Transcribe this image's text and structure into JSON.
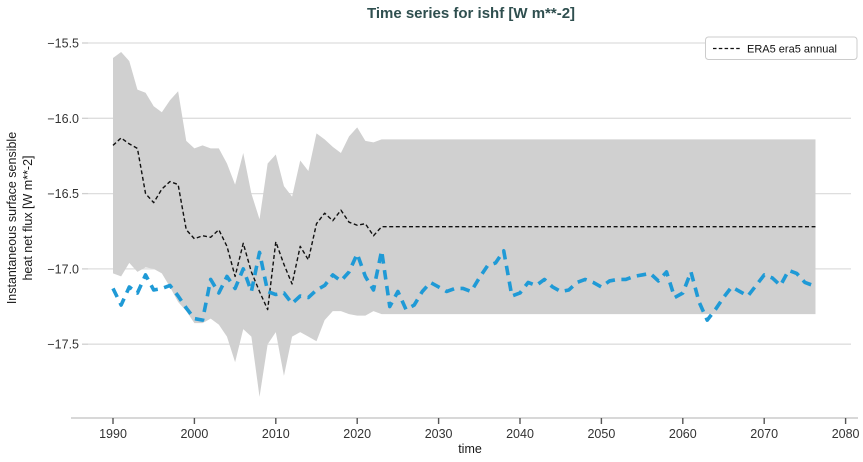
{
  "chart": {
    "title": "Time series for ishf [W m**-2]",
    "title_color": "#2f4f4f",
    "xlabel": "time",
    "ylabel_line1": "Instantaneous surface sensible",
    "ylabel_line2": "heat net flux [W m**-2]",
    "legend": {
      "label": "ERA5 era5 annual"
    }
  },
  "chart_data": {
    "type": "line",
    "title": "Time series for ishf [W m**-2]",
    "xlabel": "time",
    "ylabel": "Instantaneous surface sensible heat net flux [W m**-2]",
    "xlim": [
      1987,
      2081
    ],
    "ylim": [
      -17.99,
      -15.46
    ],
    "x_ticks": [
      1990,
      2000,
      2010,
      2020,
      2030,
      2040,
      2050,
      2060,
      2070,
      2080
    ],
    "y_ticks": [
      -15.5,
      -16.0,
      -16.5,
      -17.0,
      -17.5
    ],
    "grid": "horizontal",
    "legend_position": "upper right",
    "legend_entries": [
      "ERA5 era5 annual"
    ],
    "colors": {
      "era5_line": "#111111",
      "blue_line": "#1f9ad6",
      "band": "#d0d0d0",
      "gridline": "#dedede",
      "axis": "#d8d8d8"
    },
    "series": [
      {
        "name": "ERA5 era5 annual",
        "line_style": "thin-dashed",
        "color": "#111111",
        "in_legend": true,
        "x": [
          1990,
          1991,
          1992,
          1993,
          1994,
          1995,
          1996,
          1997,
          1998,
          1999,
          2000,
          2001,
          2002,
          2003,
          2004,
          2005,
          2006,
          2007,
          2008,
          2009,
          2010,
          2011,
          2012,
          2013,
          2014,
          2015,
          2016,
          2017,
          2018,
          2019,
          2020,
          2021,
          2022,
          2023,
          2024,
          2076.3
        ],
        "y": [
          -16.18,
          -16.13,
          -16.17,
          -16.2,
          -16.5,
          -16.56,
          -16.47,
          -16.42,
          -16.44,
          -16.74,
          -16.8,
          -16.78,
          -16.79,
          -16.74,
          -16.85,
          -17.05,
          -16.83,
          -17.02,
          -17.15,
          -17.27,
          -16.82,
          -16.97,
          -17.1,
          -16.85,
          -16.94,
          -16.7,
          -16.63,
          -16.68,
          -16.61,
          -16.69,
          -16.71,
          -16.7,
          -16.78,
          -16.72,
          -16.72,
          -16.72
        ]
      },
      {
        "name": "annual (blue, unlabeled)",
        "line_style": "thick-dashed",
        "color": "#1f9ad6",
        "in_legend": false,
        "x": [
          1990,
          1991,
          1992,
          1993,
          1994,
          1995,
          1996,
          1997,
          1998,
          1999,
          2000,
          2001,
          2002,
          2003,
          2004,
          2005,
          2006,
          2007,
          2008,
          2009,
          2010,
          2011,
          2012,
          2013,
          2014,
          2015,
          2016,
          2017,
          2018,
          2019,
          2020,
          2021,
          2022,
          2023,
          2024,
          2025,
          2026,
          2027,
          2028,
          2029,
          2030,
          2031,
          2032,
          2033,
          2034,
          2035,
          2036,
          2037,
          2038,
          2039,
          2040,
          2041,
          2042,
          2043,
          2044,
          2045,
          2046,
          2047,
          2048,
          2049,
          2050,
          2051,
          2052,
          2053,
          2054,
          2055,
          2056,
          2057,
          2058,
          2059,
          2060,
          2061,
          2062,
          2063,
          2064,
          2065,
          2066,
          2067,
          2068,
          2069,
          2070,
          2071,
          2072,
          2073,
          2074,
          2075,
          2076
        ],
        "y": [
          -17.13,
          -17.24,
          -17.12,
          -17.16,
          -17.04,
          -17.14,
          -17.13,
          -17.11,
          -17.18,
          -17.26,
          -17.33,
          -17.34,
          -17.07,
          -17.16,
          -17.05,
          -17.13,
          -17.0,
          -17.15,
          -16.89,
          -17.15,
          -17.17,
          -17.16,
          -17.23,
          -17.18,
          -17.19,
          -17.14,
          -17.11,
          -17.04,
          -17.08,
          -17.02,
          -16.9,
          -17.05,
          -17.14,
          -16.88,
          -17.25,
          -17.15,
          -17.27,
          -17.24,
          -17.15,
          -17.09,
          -17.12,
          -17.15,
          -17.13,
          -17.13,
          -17.15,
          -17.06,
          -16.98,
          -16.96,
          -16.88,
          -17.18,
          -17.16,
          -17.09,
          -17.11,
          -17.07,
          -17.12,
          -17.15,
          -17.14,
          -17.09,
          -17.07,
          -17.09,
          -17.12,
          -17.08,
          -17.07,
          -17.07,
          -17.05,
          -17.04,
          -17.03,
          -17.08,
          -17.02,
          -17.19,
          -17.16,
          -17.02,
          -17.22,
          -17.34,
          -17.27,
          -17.19,
          -17.12,
          -17.15,
          -17.18,
          -17.11,
          -17.04,
          -17.06,
          -17.11,
          -17.01,
          -17.03,
          -17.09,
          -17.11
        ]
      }
    ],
    "band": {
      "name": "ensemble min-max range",
      "color": "#d0d0d0",
      "x": [
        1990,
        1991,
        1992,
        1993,
        1994,
        1995,
        1996,
        1997,
        1998,
        1999,
        2000,
        2001,
        2002,
        2003,
        2004,
        2005,
        2006,
        2007,
        2008,
        2009,
        2010,
        2011,
        2012,
        2013,
        2014,
        2015,
        2016,
        2017,
        2018,
        2019,
        2020,
        2021,
        2022,
        2023,
        2076.3
      ],
      "upper": [
        -15.6,
        -15.56,
        -15.62,
        -15.81,
        -15.83,
        -15.92,
        -15.96,
        -15.88,
        -15.82,
        -16.15,
        -16.2,
        -16.18,
        -16.2,
        -16.2,
        -16.3,
        -16.44,
        -16.23,
        -16.5,
        -16.67,
        -16.3,
        -16.24,
        -16.45,
        -16.52,
        -16.28,
        -16.35,
        -16.1,
        -16.14,
        -16.19,
        -16.23,
        -16.12,
        -16.06,
        -16.15,
        -16.16,
        -16.14,
        -16.14
      ],
      "lower": [
        -17.03,
        -17.05,
        -16.96,
        -17.02,
        -16.99,
        -17.0,
        -17.03,
        -17.12,
        -17.22,
        -17.28,
        -17.36,
        -17.36,
        -17.33,
        -17.37,
        -17.45,
        -17.62,
        -17.4,
        -17.45,
        -17.85,
        -17.5,
        -17.42,
        -17.71,
        -17.45,
        -17.42,
        -17.45,
        -17.48,
        -17.34,
        -17.28,
        -17.28,
        -17.3,
        -17.31,
        -17.31,
        -17.28,
        -17.3,
        -17.3
      ]
    }
  }
}
